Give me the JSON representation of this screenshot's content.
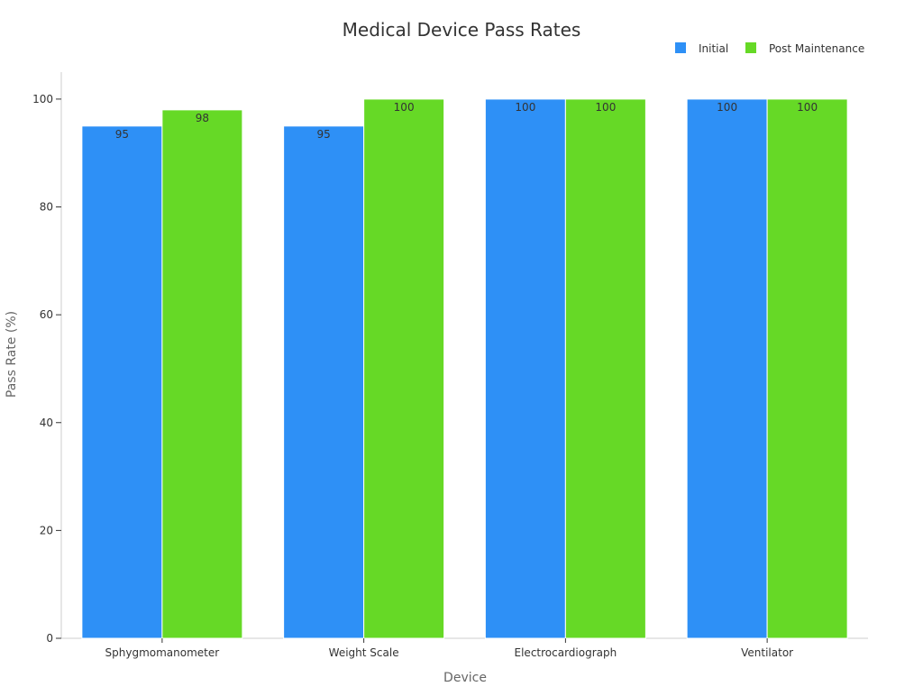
{
  "chart_data": {
    "type": "bar",
    "title": "Medical Device Pass Rates",
    "xlabel": "Device",
    "ylabel": "Pass Rate (%)",
    "categories": [
      "Sphygmomanometer",
      "Weight Scale",
      "Electrocardiograph",
      "Ventilator"
    ],
    "series": [
      {
        "name": "Initial",
        "values": [
          95,
          95,
          100,
          100
        ],
        "color": "#2e90f6"
      },
      {
        "name": "Post Maintenance",
        "values": [
          98,
          100,
          100,
          100
        ],
        "color": "#66d926"
      }
    ],
    "ylim": [
      0,
      105
    ],
    "yticks": [
      0,
      20,
      40,
      60,
      80,
      100
    ],
    "legend_position": "top-right",
    "grid": false
  }
}
